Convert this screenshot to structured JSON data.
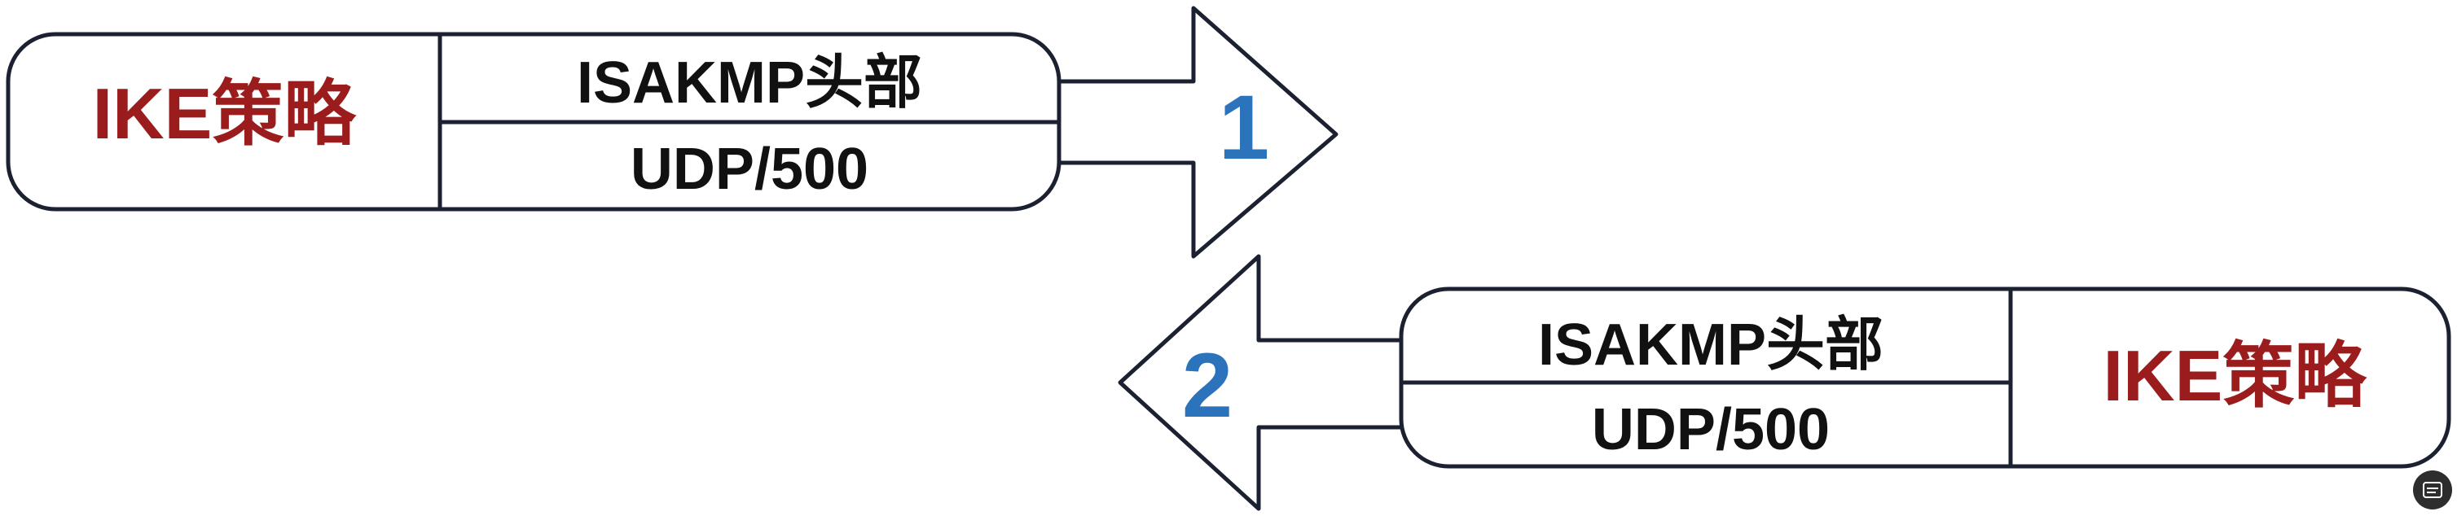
{
  "message_1": {
    "step_number": "1",
    "policy_label": "IKE策略",
    "header_label": "ISAKMP头部",
    "transport_label": "UDP/500"
  },
  "message_2": {
    "step_number": "2",
    "policy_label": "IKE策略",
    "header_label": "ISAKMP头部",
    "transport_label": "UDP/500"
  },
  "colors": {
    "policy_text": "#9b1c1c",
    "step_number": "#2b73bb",
    "outline": "#1b2130",
    "box_fill": "#ffffff"
  },
  "corner_control": {
    "icon": "caption-icon"
  }
}
